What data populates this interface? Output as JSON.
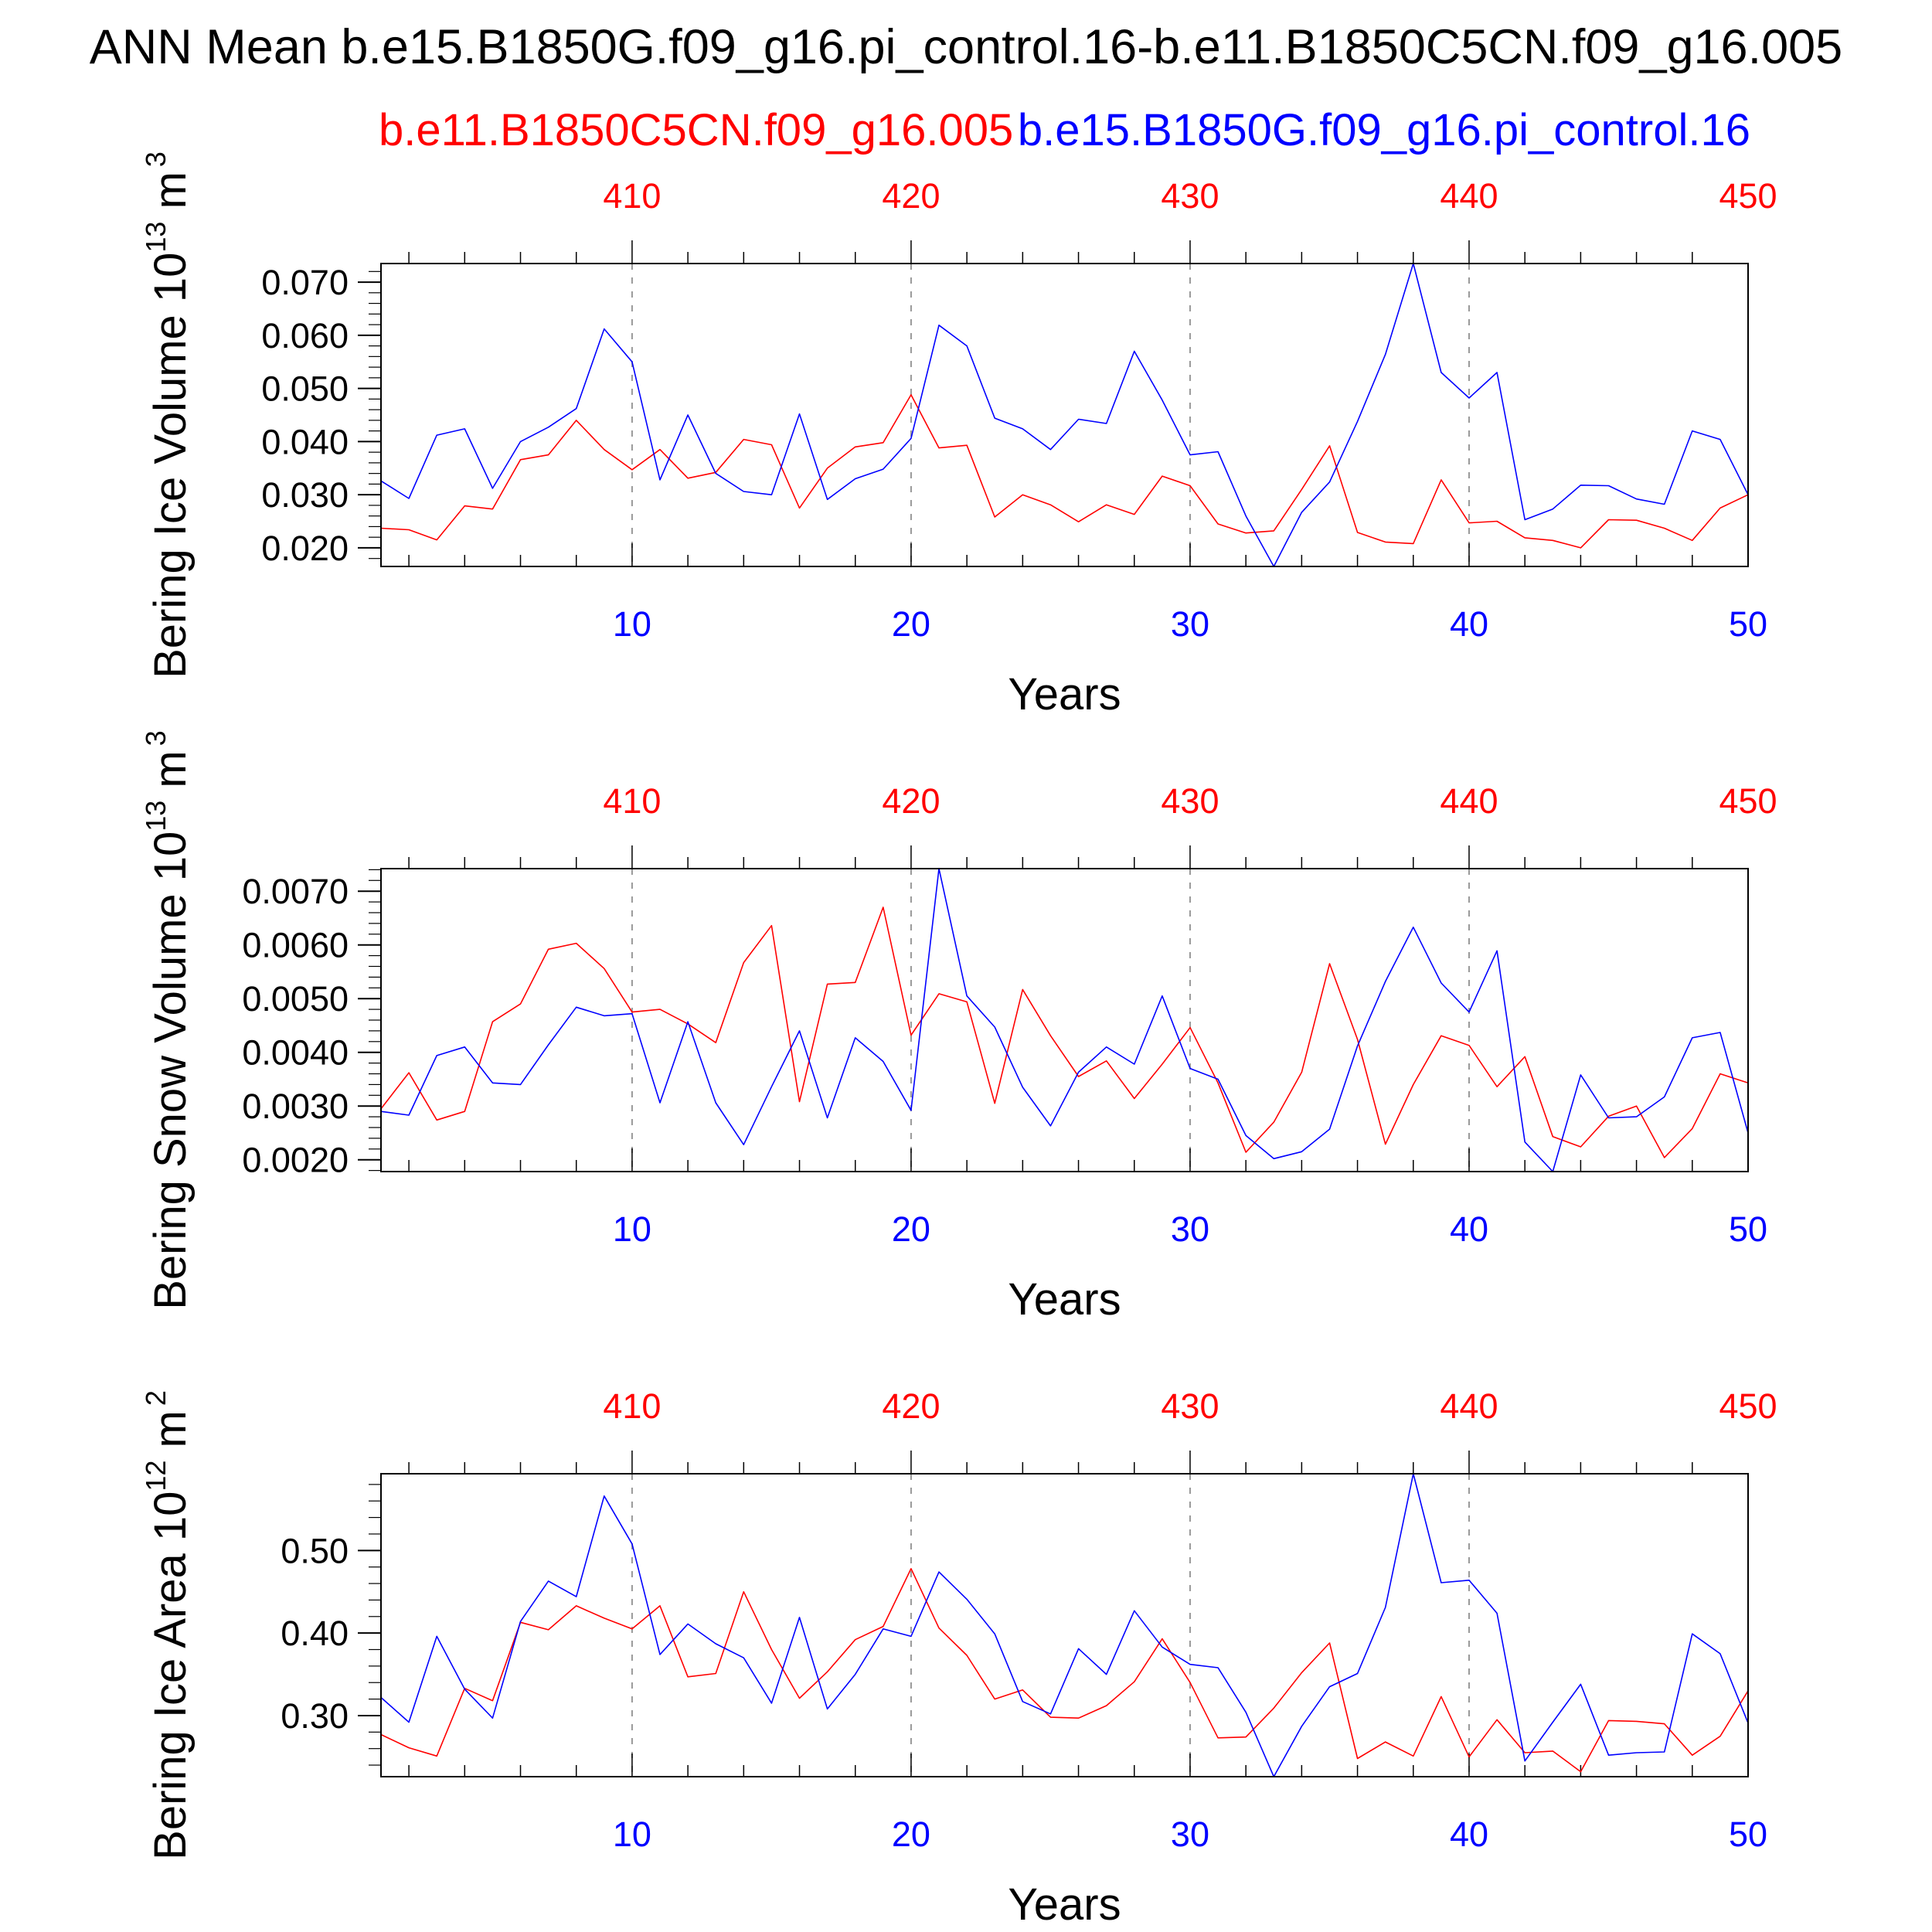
{
  "main_title": "ANN Mean b.e15.B1850G.f09_g16.pi_control.16-b.e11.B1850C5CN.f09_g16.005",
  "legend": {
    "red_label": "b.e11.B1850C5CN.f09_g16.005",
    "blue_label": "b.e15.B1850G.f09_g16.pi_control.16"
  },
  "colors": {
    "red": "#ff0000",
    "blue": "#0000ff",
    "axis": "#000000",
    "grid": "#999999"
  },
  "bottom_ticks": [
    "10",
    "20",
    "30",
    "40",
    "50"
  ],
  "top_ticks": [
    "410",
    "420",
    "430",
    "440",
    "450"
  ],
  "chart_data": [
    {
      "type": "line",
      "ylabel_main": "Bering Ice Volume 10",
      "ylabel_exp": "13",
      "ylabel_unit": "m",
      "ylabel_unit_exp": "3",
      "xlabel": "Years",
      "ylim": [
        0.0165,
        0.0735
      ],
      "yticks": [
        0.02,
        0.03,
        0.04,
        0.05,
        0.06,
        0.07
      ],
      "yticklabels": [
        "0.020",
        "0.030",
        "0.040",
        "0.050",
        "0.060",
        "0.070"
      ],
      "yminor": 0.002,
      "xlim": [
        1,
        50
      ],
      "xticks_bottom": [
        10,
        20,
        30,
        40,
        50
      ],
      "xticks_top": [
        410,
        420,
        430,
        440,
        450
      ],
      "series": [
        {
          "name": "b.e11.B1850C5CN.f09_g16.005",
          "color": "red",
          "values": [
            0.0237,
            0.0234,
            0.0215,
            0.0279,
            0.0273,
            0.0366,
            0.0375,
            0.044,
            0.0385,
            0.0347,
            0.0385,
            0.0331,
            0.0342,
            0.0404,
            0.0394,
            0.0275,
            0.035,
            0.039,
            0.0398,
            0.0488,
            0.0388,
            0.0393,
            0.0258,
            0.03,
            0.0281,
            0.0249,
            0.0281,
            0.0263,
            0.0335,
            0.0317,
            0.0245,
            0.0228,
            0.0232,
            0.031,
            0.0392,
            0.0229,
            0.0211,
            0.0208,
            0.0328,
            0.0247,
            0.025,
            0.0219,
            0.0214,
            0.02,
            0.0253,
            0.0252,
            0.0237,
            0.0214,
            0.0275,
            0.03
          ]
        },
        {
          "name": "b.e15.B1850G.f09_g16.pi_control.16",
          "color": "blue",
          "values": [
            0.0326,
            0.0293,
            0.0412,
            0.0424,
            0.0312,
            0.04,
            0.0427,
            0.0462,
            0.0612,
            0.055,
            0.0328,
            0.045,
            0.034,
            0.0306,
            0.03,
            0.0452,
            0.0291,
            0.033,
            0.0348,
            0.0406,
            0.0619,
            0.058,
            0.0444,
            0.0424,
            0.0385,
            0.0442,
            0.0434,
            0.057,
            0.0478,
            0.0375,
            0.0381,
            0.026,
            0.0165,
            0.0267,
            0.0324,
            0.0438,
            0.0564,
            0.0735,
            0.053,
            0.0482,
            0.053,
            0.0253,
            0.0273,
            0.0318,
            0.0317,
            0.0292,
            0.0282,
            0.042,
            0.0404,
            0.03
          ]
        }
      ]
    },
    {
      "type": "line",
      "ylabel_main": "Bering Snow Volume 10",
      "ylabel_exp": "13",
      "ylabel_unit": "m",
      "ylabel_unit_exp": "3",
      "xlabel": "Years",
      "ylim": [
        0.00178,
        0.00742
      ],
      "yticks": [
        0.002,
        0.003,
        0.004,
        0.005,
        0.006,
        0.007
      ],
      "yticklabels": [
        "0.0020",
        "0.0030",
        "0.0040",
        "0.0050",
        "0.0060",
        "0.0070"
      ],
      "yminor": 0.0002,
      "xlim": [
        1,
        50
      ],
      "xticks_bottom": [
        10,
        20,
        30,
        40,
        50
      ],
      "xticks_top": [
        410,
        420,
        430,
        440,
        450
      ],
      "series": [
        {
          "name": "b.e11.B1850C5CN.f09_g16.005",
          "color": "red",
          "values": [
            0.00295,
            0.00362,
            0.00274,
            0.0029,
            0.00457,
            0.0049,
            0.00592,
            0.00603,
            0.00556,
            0.00475,
            0.0048,
            0.00453,
            0.00418,
            0.00567,
            0.00636,
            0.00308,
            0.00527,
            0.0053,
            0.0067,
            0.00432,
            0.00509,
            0.00494,
            0.00305,
            0.00517,
            0.00431,
            0.00355,
            0.00384,
            0.00314,
            0.00378,
            0.00446,
            0.00343,
            0.00214,
            0.0027,
            0.00363,
            0.00565,
            0.00424,
            0.00229,
            0.0034,
            0.00431,
            0.00413,
            0.00336,
            0.00392,
            0.00243,
            0.00224,
            0.00281,
            0.003,
            0.00204,
            0.00258,
            0.0036,
            0.00343
          ]
        },
        {
          "name": "b.e15.B1850G.f09_g16.pi_control.16",
          "color": "blue",
          "values": [
            0.0029,
            0.00283,
            0.00394,
            0.0041,
            0.00343,
            0.0034,
            0.00414,
            0.00484,
            0.00468,
            0.00472,
            0.00306,
            0.00457,
            0.00306,
            0.00228,
            0.00336,
            0.0044,
            0.00278,
            0.00427,
            0.00383,
            0.00292,
            0.00742,
            0.00505,
            0.00447,
            0.00335,
            0.00263,
            0.00363,
            0.0041,
            0.00378,
            0.00505,
            0.0037,
            0.0035,
            0.00245,
            0.00202,
            0.00215,
            0.00257,
            0.00412,
            0.00532,
            0.00633,
            0.00529,
            0.00475,
            0.00589,
            0.00233,
            0.00178,
            0.00358,
            0.00278,
            0.0028,
            0.00317,
            0.00427,
            0.00437,
            0.0025
          ]
        }
      ]
    },
    {
      "type": "line",
      "ylabel_main": "Bering Ice Area 10",
      "ylabel_exp": "12",
      "ylabel_unit": "m",
      "ylabel_unit_exp": "2",
      "xlabel": "Years",
      "ylim": [
        0.226,
        0.593
      ],
      "yticks": [
        0.3,
        0.4,
        0.5
      ],
      "yticklabels": [
        "0.30",
        "0.40",
        "0.50"
      ],
      "yminor": 0.02,
      "xlim": [
        1,
        50
      ],
      "xticks_bottom": [
        10,
        20,
        30,
        40,
        50
      ],
      "xticks_top": [
        410,
        420,
        430,
        440,
        450
      ],
      "series": [
        {
          "name": "b.e11.B1850C5CN.f09_g16.005",
          "color": "red",
          "values": [
            0.277,
            0.261,
            0.251,
            0.333,
            0.318,
            0.413,
            0.404,
            0.433,
            0.418,
            0.405,
            0.433,
            0.347,
            0.351,
            0.45,
            0.38,
            0.321,
            0.353,
            0.392,
            0.408,
            0.478,
            0.406,
            0.373,
            0.32,
            0.331,
            0.298,
            0.297,
            0.312,
            0.341,
            0.393,
            0.34,
            0.273,
            0.274,
            0.309,
            0.352,
            0.388,
            0.248,
            0.268,
            0.251,
            0.323,
            0.25,
            0.295,
            0.255,
            0.257,
            0.232,
            0.294,
            0.293,
            0.29,
            0.252,
            0.275,
            0.33
          ]
        },
        {
          "name": "b.e15.B1850G.f09_g16.pi_control.16",
          "color": "blue",
          "values": [
            0.322,
            0.292,
            0.396,
            0.332,
            0.297,
            0.414,
            0.463,
            0.444,
            0.566,
            0.508,
            0.374,
            0.411,
            0.387,
            0.37,
            0.315,
            0.419,
            0.308,
            0.35,
            0.405,
            0.396,
            0.474,
            0.441,
            0.399,
            0.317,
            0.302,
            0.381,
            0.35,
            0.427,
            0.383,
            0.362,
            0.358,
            0.304,
            0.226,
            0.287,
            0.335,
            0.351,
            0.431,
            0.593,
            0.461,
            0.464,
            0.424,
            0.245,
            0.292,
            0.338,
            0.252,
            0.255,
            0.256,
            0.399,
            0.375,
            0.291
          ]
        }
      ]
    }
  ]
}
